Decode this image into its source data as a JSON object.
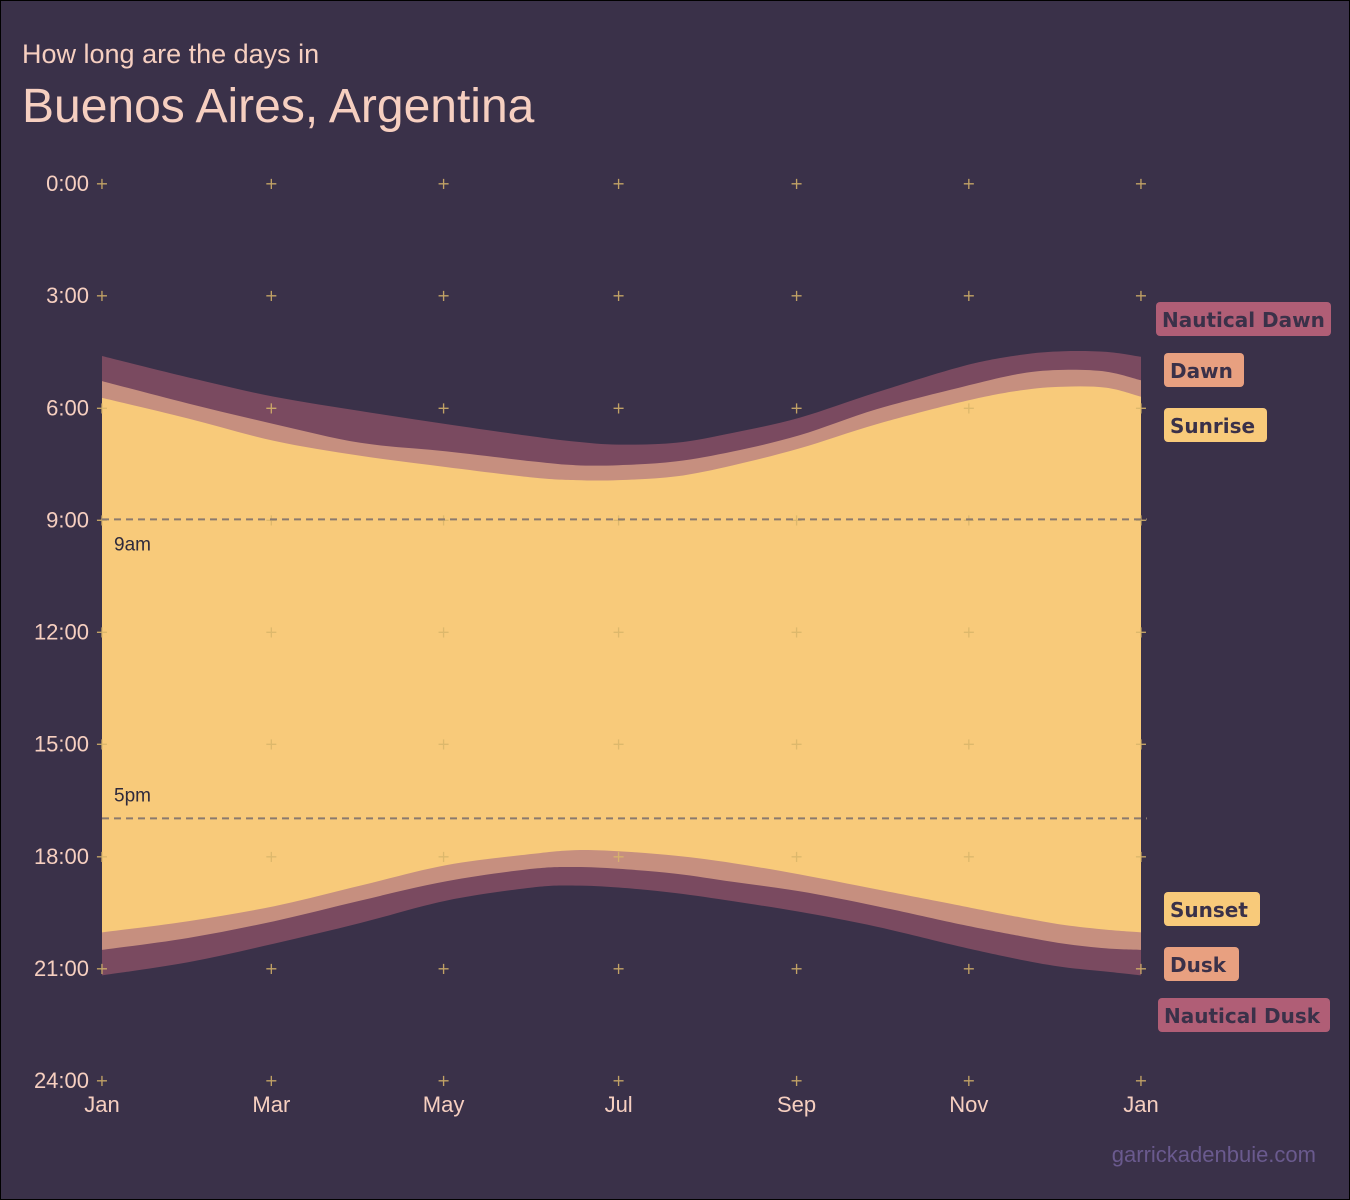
{
  "subtitle": "How long are the days in",
  "title": "Buenos Aires, Argentina",
  "credit": "garrickadenbuie.com",
  "colors": {
    "background": "#3a3149",
    "text": "#f6cfc0",
    "cross": "#d9b66a",
    "daylight": "#f8ca7a",
    "civil_twilight": "#c68f7f",
    "nautical_twilight": "#7a4a60",
    "reference_line": "#8a7a6e",
    "reference_text": "#2e2a3c",
    "credit": "#6a5a8e"
  },
  "chart_data": {
    "type": "area",
    "x_ticks": [
      "Jan",
      "Mar",
      "May",
      "Jul",
      "Sep",
      "Nov",
      "Jan"
    ],
    "x_tick_days": [
      0,
      59,
      119,
      180,
      242,
      302,
      362
    ],
    "y_ticks": [
      "0:00",
      "3:00",
      "6:00",
      "9:00",
      "12:00",
      "15:00",
      "18:00",
      "21:00",
      "24:00"
    ],
    "y_tick_hours": [
      0,
      3,
      6,
      9,
      12,
      15,
      18,
      21,
      24
    ],
    "ylim": [
      0,
      24
    ],
    "y_reversed": true,
    "grid": "crosses",
    "reference_lines": [
      {
        "hour": 9,
        "label": "9am"
      },
      {
        "hour": 17,
        "label": "5pm"
      }
    ],
    "day": [
      0,
      30,
      60,
      90,
      120,
      150,
      165,
      180,
      200,
      220,
      243,
      270,
      300,
      320,
      335,
      350,
      362
    ],
    "series": [
      {
        "name": "Nautical Dawn",
        "color": "#b05e76",
        "values": [
          4.63,
          5.2,
          5.72,
          6.1,
          6.45,
          6.78,
          6.92,
          7.0,
          6.95,
          6.68,
          6.28,
          5.6,
          4.9,
          4.6,
          4.5,
          4.52,
          4.65
        ]
      },
      {
        "name": "Dawn",
        "color": "#e8a080",
        "values": [
          5.3,
          5.9,
          6.45,
          6.95,
          7.18,
          7.45,
          7.55,
          7.55,
          7.45,
          7.18,
          6.75,
          6.05,
          5.45,
          5.1,
          5.0,
          5.05,
          5.28
        ]
      },
      {
        "name": "Sunrise",
        "color": "#f8ca7a",
        "values": [
          5.75,
          6.3,
          6.9,
          7.3,
          7.6,
          7.88,
          7.95,
          7.95,
          7.85,
          7.55,
          7.1,
          6.45,
          5.85,
          5.55,
          5.45,
          5.48,
          5.72
        ]
      },
      {
        "name": "Sunset",
        "color": "#f8ca7a",
        "values": [
          20.05,
          19.75,
          19.35,
          18.8,
          18.25,
          17.95,
          17.85,
          17.88,
          18.0,
          18.2,
          18.5,
          18.9,
          19.35,
          19.65,
          19.85,
          19.98,
          20.05
        ]
      },
      {
        "name": "Dusk",
        "color": "#e8a080",
        "values": [
          20.52,
          20.2,
          19.75,
          19.2,
          18.68,
          18.35,
          18.3,
          18.35,
          18.48,
          18.7,
          18.95,
          19.35,
          19.85,
          20.15,
          20.35,
          20.48,
          20.52
        ]
      },
      {
        "name": "Nautical Dusk",
        "color": "#b05e76",
        "values": [
          21.2,
          20.85,
          20.35,
          19.8,
          19.2,
          18.85,
          18.8,
          18.85,
          19.0,
          19.22,
          19.5,
          19.9,
          20.45,
          20.78,
          20.98,
          21.1,
          21.2
        ]
      }
    ]
  }
}
